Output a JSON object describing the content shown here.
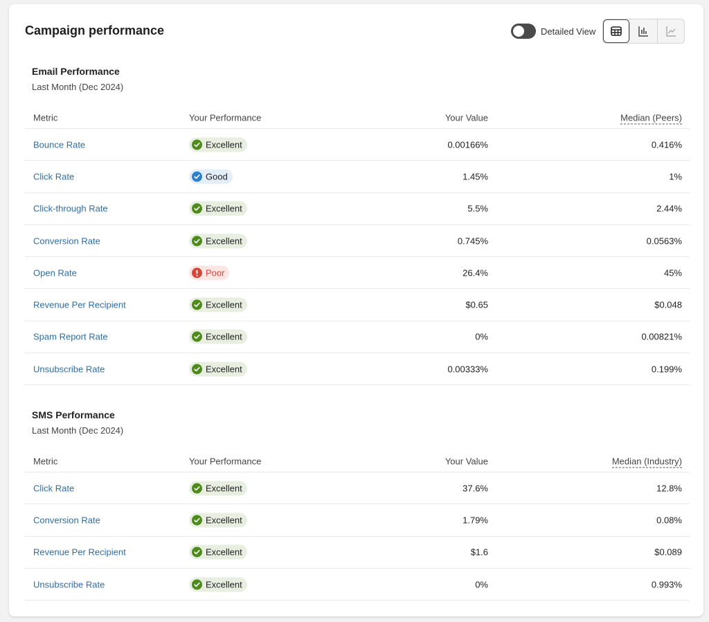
{
  "header": {
    "title": "Campaign performance",
    "toggle_label": "Detailed View"
  },
  "sections": [
    {
      "title": "Email Performance",
      "subtitle": "Last Month (Dec 2024)",
      "columns": [
        "Metric",
        "Your Performance",
        "Your Value",
        "Median (Peers)"
      ],
      "rows": [
        {
          "metric": "Bounce Rate",
          "performance": {
            "label": "Excellent",
            "color": "#4f8a1d",
            "icon": "check"
          },
          "value": "0.00166%",
          "median": "0.416%"
        },
        {
          "metric": "Click Rate",
          "performance": {
            "label": "Good",
            "color": "#2f7fc8",
            "icon": "check"
          },
          "value": "1.45%",
          "median": "1%"
        },
        {
          "metric": "Click-through Rate",
          "performance": {
            "label": "Excellent",
            "color": "#4f8a1d",
            "icon": "check"
          },
          "value": "5.5%",
          "median": "2.44%"
        },
        {
          "metric": "Conversion Rate",
          "performance": {
            "label": "Excellent",
            "color": "#4f8a1d",
            "icon": "check"
          },
          "value": "0.745%",
          "median": "0.0563%"
        },
        {
          "metric": "Open Rate",
          "performance": {
            "label": "Poor",
            "color": "#d6473b",
            "icon": "alert"
          },
          "value": "26.4%",
          "median": "45%"
        },
        {
          "metric": "Revenue Per Recipient",
          "performance": {
            "label": "Excellent",
            "color": "#4f8a1d",
            "icon": "check"
          },
          "value": "$0.65",
          "median": "$0.048"
        },
        {
          "metric": "Spam Report Rate",
          "performance": {
            "label": "Excellent",
            "color": "#4f8a1d",
            "icon": "check"
          },
          "value": "0%",
          "median": "0.00821%"
        },
        {
          "metric": "Unsubscribe Rate",
          "performance": {
            "label": "Excellent",
            "color": "#4f8a1d",
            "icon": "check"
          },
          "value": "0.00333%",
          "median": "0.199%"
        }
      ]
    },
    {
      "title": "SMS Performance",
      "subtitle": "Last Month (Dec 2024)",
      "columns": [
        "Metric",
        "Your Performance",
        "Your Value",
        "Median (Industry)"
      ],
      "rows": [
        {
          "metric": "Click Rate",
          "performance": {
            "label": "Excellent",
            "color": "#4f8a1d",
            "icon": "check"
          },
          "value": "37.6%",
          "median": "12.8%"
        },
        {
          "metric": "Conversion Rate",
          "performance": {
            "label": "Excellent",
            "color": "#4f8a1d",
            "icon": "check"
          },
          "value": "1.79%",
          "median": "0.08%"
        },
        {
          "metric": "Revenue Per Recipient",
          "performance": {
            "label": "Excellent",
            "color": "#4f8a1d",
            "icon": "check"
          },
          "value": "$1.6",
          "median": "$0.089"
        },
        {
          "metric": "Unsubscribe Rate",
          "performance": {
            "label": "Excellent",
            "color": "#4f8a1d",
            "icon": "check"
          },
          "value": "0%",
          "median": "0.993%"
        }
      ]
    }
  ]
}
